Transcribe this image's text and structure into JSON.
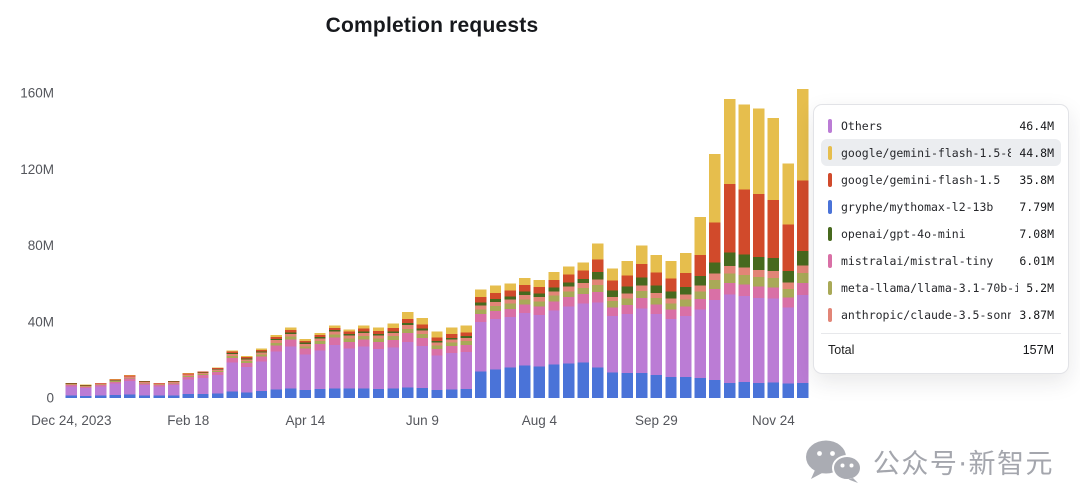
{
  "title": "Completion requests",
  "chart_data": {
    "type": "bar",
    "stacked": true,
    "title": "Completion requests",
    "ylabel": "",
    "xlabel": "",
    "ylim": [
      0,
      160
    ],
    "grid": false,
    "yticks": [
      {
        "value": 0,
        "label": "0"
      },
      {
        "value": 40,
        "label": "40M"
      },
      {
        "value": 80,
        "label": "80M"
      },
      {
        "value": 120,
        "label": "120M"
      },
      {
        "value": 160,
        "label": "160M"
      }
    ],
    "xtick_indices": [
      0,
      8,
      16,
      24,
      32,
      40,
      48
    ],
    "x": [
      "Dec 24, 2023",
      "Dec 31, 2023",
      "Jan 7, 2024",
      "Jan 14",
      "Jan 21",
      "Jan 28",
      "Feb 4",
      "Feb 11",
      "Feb 18",
      "Feb 25",
      "Mar 3",
      "Mar 10",
      "Mar 17",
      "Mar 24",
      "Mar 31",
      "Apr 7",
      "Apr 14",
      "Apr 21",
      "Apr 28",
      "May 5",
      "May 12",
      "May 19",
      "May 26",
      "Jun 2",
      "Jun 9",
      "Jun 16",
      "Jun 23",
      "Jun 30",
      "Jul 7",
      "Jul 14",
      "Jul 21",
      "Jul 28",
      "Aug 4",
      "Aug 11",
      "Aug 18",
      "Aug 25",
      "Sep 1",
      "Sep 8",
      "Sep 15",
      "Sep 22",
      "Sep 29",
      "Oct 6",
      "Oct 13",
      "Oct 20",
      "Oct 27",
      "Nov 3",
      "Nov 10",
      "Nov 17",
      "Nov 24",
      "Dec 1",
      "Dec 8"
    ],
    "series": [
      {
        "name": "gryphe/mythomax-l2-13b",
        "color": "#4a73d8",
        "values": [
          1.2,
          1.0,
          1.2,
          1.5,
          1.8,
          1.4,
          1.2,
          1.4,
          2.0,
          2.2,
          2.4,
          3.5,
          3.0,
          3.6,
          4.5,
          5.0,
          4.2,
          4.6,
          5.1,
          4.9,
          5.0,
          4.8,
          5.0,
          5.5,
          5.2,
          4.3,
          4.5,
          4.6,
          14.0,
          15.0,
          16.0,
          17.0,
          16.5,
          17.5,
          18.0,
          18.5,
          16.0,
          13.5,
          13.0,
          13.0,
          12.0,
          11.0,
          11.0,
          10.5,
          9.5,
          7.79,
          8.5,
          8.0,
          8.2,
          7.5,
          8.0
        ]
      },
      {
        "name": "Others",
        "color": "#bb7cd5",
        "values": [
          4.8,
          4.2,
          4.8,
          6.0,
          7.2,
          5.4,
          4.8,
          5.4,
          7.8,
          8.4,
          9.6,
          15.0,
          13.2,
          15.6,
          19.8,
          22.0,
          18.6,
          20.4,
          22.8,
          21.0,
          22.0,
          21.0,
          21.5,
          24.0,
          22.0,
          18.0,
          19.0,
          19.5,
          26.0,
          26.5,
          26.5,
          27.5,
          27.0,
          28.5,
          30.0,
          31.0,
          34.0,
          29.5,
          31.0,
          34.0,
          32.0,
          30.5,
          32.0,
          36.0,
          42.0,
          46.4,
          45.0,
          44.5,
          44.0,
          40.0,
          46.0
        ]
      },
      {
        "name": "mistralai/mistral-tiny",
        "color": "#d970a6",
        "values": [
          0.8,
          0.7,
          0.9,
          1.0,
          1.2,
          0.9,
          0.8,
          0.9,
          1.3,
          1.4,
          1.6,
          2.5,
          2.2,
          2.6,
          3.3,
          3.7,
          3.1,
          3.4,
          3.8,
          3.6,
          3.8,
          3.7,
          3.9,
          4.5,
          4.2,
          3.5,
          3.7,
          3.8,
          4.0,
          4.2,
          4.3,
          4.5,
          4.4,
          4.7,
          4.9,
          5.0,
          5.5,
          4.6,
          4.9,
          5.4,
          5.0,
          4.8,
          5.0,
          5.5,
          5.8,
          6.01,
          6.0,
          5.9,
          5.8,
          5.3,
          6.2
        ]
      },
      {
        "name": "meta-llama/llama-3.1-70b-instruct",
        "color": "#a9a957",
        "values": [
          0.2,
          0.2,
          0.2,
          0.3,
          0.4,
          0.3,
          0.3,
          0.3,
          0.5,
          0.5,
          0.6,
          1.0,
          0.9,
          1.0,
          1.3,
          1.5,
          1.2,
          1.4,
          1.5,
          1.7,
          1.8,
          1.8,
          2.0,
          2.3,
          2.2,
          1.8,
          1.9,
          2.0,
          2.5,
          2.6,
          2.7,
          2.8,
          2.8,
          3.0,
          3.1,
          3.2,
          3.8,
          3.2,
          3.4,
          3.8,
          3.5,
          3.4,
          3.6,
          4.0,
          4.5,
          5.2,
          5.1,
          5.0,
          5.0,
          4.5,
          5.3
        ]
      },
      {
        "name": "anthropic/claude-3.5-sonnet",
        "color": "#e28577",
        "values": [
          0.4,
          0.3,
          0.4,
          0.5,
          0.6,
          0.4,
          0.4,
          0.4,
          0.6,
          0.6,
          0.7,
          1.0,
          0.9,
          1.1,
          1.4,
          1.5,
          1.3,
          1.4,
          1.6,
          1.5,
          1.6,
          1.6,
          1.7,
          2.0,
          1.8,
          1.5,
          1.6,
          1.6,
          2.0,
          2.1,
          2.1,
          2.2,
          2.2,
          2.3,
          2.4,
          2.5,
          2.8,
          2.3,
          2.5,
          2.7,
          2.6,
          2.5,
          2.6,
          3.0,
          3.4,
          3.87,
          3.8,
          3.7,
          3.6,
          3.2,
          4.0
        ]
      },
      {
        "name": "openai/gpt-4o-mini",
        "color": "#47691e",
        "values": [
          0.1,
          0.1,
          0.1,
          0.2,
          0.2,
          0.2,
          0.1,
          0.2,
          0.2,
          0.3,
          0.3,
          0.5,
          0.4,
          0.5,
          0.7,
          0.7,
          0.6,
          0.7,
          0.8,
          0.8,
          0.8,
          0.8,
          0.9,
          1.0,
          1.0,
          0.8,
          0.9,
          0.9,
          1.5,
          1.6,
          1.6,
          1.8,
          1.8,
          2.0,
          2.2,
          2.3,
          4.0,
          3.3,
          3.6,
          4.2,
          3.9,
          3.8,
          4.0,
          5.0,
          6.0,
          7.08,
          7.0,
          6.9,
          6.8,
          6.0,
          7.5
        ]
      },
      {
        "name": "google/gemini-flash-1.5",
        "color": "#d14a2b",
        "values": [
          0.3,
          0.3,
          0.3,
          0.3,
          0.4,
          0.3,
          0.3,
          0.3,
          0.4,
          0.4,
          0.5,
          0.8,
          0.8,
          0.9,
          1.1,
          1.3,
          1.0,
          1.1,
          1.2,
          1.3,
          1.5,
          1.5,
          1.8,
          2.2,
          2.1,
          1.8,
          1.9,
          2.0,
          3.0,
          3.2,
          3.3,
          3.5,
          3.5,
          3.9,
          4.2,
          4.3,
          6.5,
          5.3,
          5.8,
          7.2,
          6.8,
          6.6,
          7.3,
          11.0,
          20.8,
          35.8,
          34.0,
          33.0,
          30.6,
          24.5,
          37.0
        ]
      },
      {
        "name": "google/gemini-flash-1.5-8b",
        "color": "#e6be4d",
        "values": [
          0.2,
          0.2,
          0.1,
          0.2,
          0.2,
          0.1,
          0.1,
          0.1,
          0.2,
          0.2,
          0.3,
          0.7,
          0.6,
          0.7,
          0.9,
          1.3,
          1.0,
          1.0,
          1.2,
          1.2,
          1.5,
          1.8,
          2.2,
          3.5,
          3.5,
          3.3,
          3.5,
          3.6,
          4.0,
          3.8,
          3.5,
          3.7,
          3.8,
          4.1,
          4.2,
          4.2,
          8.4,
          6.3,
          7.8,
          9.7,
          9.2,
          9.4,
          10.5,
          20.0,
          36.0,
          44.8,
          44.6,
          45.0,
          43.0,
          32.0,
          48.0
        ]
      }
    ]
  },
  "tooltip": {
    "rows": [
      {
        "label": "Others",
        "value": "46.4M",
        "color": "#bb7cd5",
        "highlight": false
      },
      {
        "label": "google/gemini-flash-1.5-8b",
        "value": "44.8M",
        "color": "#e6be4d",
        "highlight": true
      },
      {
        "label": "google/gemini-flash-1.5",
        "value": "35.8M",
        "color": "#d14a2b",
        "highlight": false
      },
      {
        "label": "gryphe/mythomax-l2-13b",
        "value": "7.79M",
        "color": "#4a73d8",
        "highlight": false
      },
      {
        "label": "openai/gpt-4o-mini",
        "value": "7.08M",
        "color": "#47691e",
        "highlight": false
      },
      {
        "label": "mistralai/mistral-tiny",
        "value": "6.01M",
        "color": "#d970a6",
        "highlight": false
      },
      {
        "label": "meta-llama/llama-3.1-70b-ins…",
        "value": "5.2M",
        "color": "#a9a957",
        "highlight": false
      },
      {
        "label": "anthropic/claude-3.5-sonnet",
        "value": "3.87M",
        "color": "#e28577",
        "highlight": false
      }
    ],
    "total_label": "Total",
    "total_value": "157M"
  },
  "watermark": {
    "text": "公众号·新智元"
  }
}
